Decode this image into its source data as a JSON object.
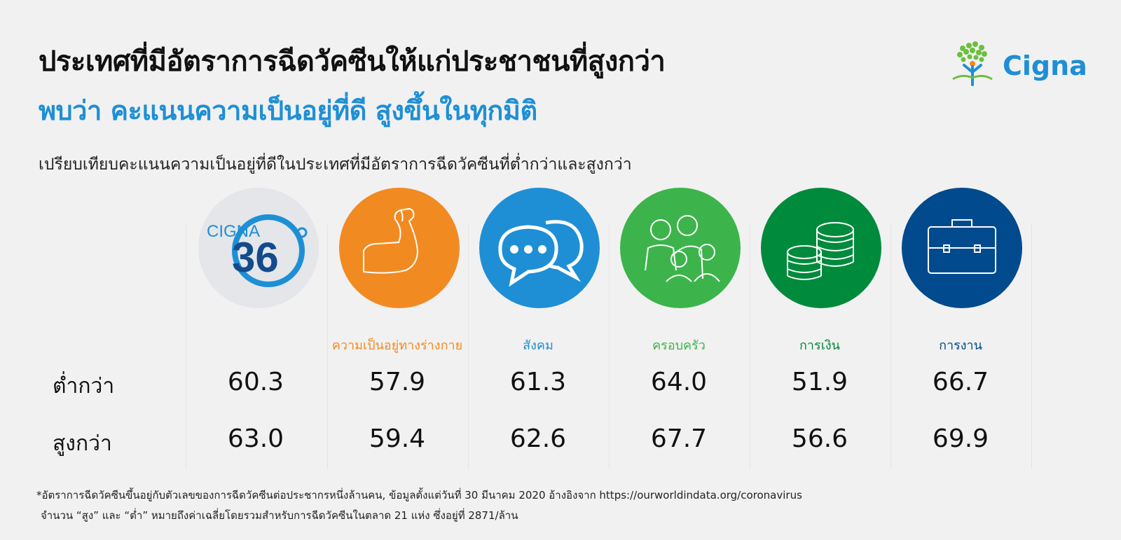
{
  "header": {
    "title": "ประเทศที่มีอัตราการฉีดวัคซีนให้แก่ประชาชนที่สูงกว่า",
    "subtitle": "พบว่า คะแนนความเป็นอยู่ที่ดี สูงขึ้นในทุกมิติ",
    "logo_text": "Cigna"
  },
  "chart_data": {
    "type": "table",
    "title": "เปรียบเทียบคะแนนความเป็นอยู่ที่ดีในประเทศที่มีอัตราการฉีดวัคซีนที่ต่ำกว่าและสูงกว่า",
    "categories": [
      "CIGNA 360°",
      "ความเป็นอยู่ทางร่างกาย",
      "สังคม",
      "ครอบครัว",
      "การเงิน",
      "การงาน"
    ],
    "series": [
      {
        "name": "ต่ำกว่า",
        "values": [
          60.3,
          57.9,
          61.3,
          64.0,
          51.9,
          66.7
        ]
      },
      {
        "name": "สูงกว่า",
        "values": [
          63.0,
          59.4,
          62.6,
          67.7,
          56.6,
          69.9
        ]
      }
    ]
  },
  "badge": {
    "cigna_word": "CIGNA",
    "cigna_number": "36"
  },
  "colors": {
    "overall": "#e4e6ea",
    "physical": "#f28a22",
    "social": "#1e8fd5",
    "family": "#3cb44b",
    "financial": "#008a3c",
    "work": "#004a8d"
  },
  "icons": [
    "cigna-360-icon",
    "flexed-arm-icon",
    "chat-bubbles-icon",
    "family-icon",
    "coins-icon",
    "briefcase-icon"
  ],
  "footnote": {
    "line1": "*อัตราการฉีดวัคซีนขึ้นอยู่กับตัวเลขของการฉีดวัคซีนต่อประชากรหนึ่งล้านคน, ข้อมูลตั้งแต่วันที่ 30 มีนาคม 2020 อ้างอิงจาก https://ourworldindata.org/coronavirus",
    "line2": "จำนวน “สูง” และ “ต่ำ” หมายถึงค่าเฉลี่ยโดยรวมสำหรับการฉีดวัคซีนในตลาด 21 แห่ง ซึ่งอยู่ที่ 2871/ล้าน"
  }
}
